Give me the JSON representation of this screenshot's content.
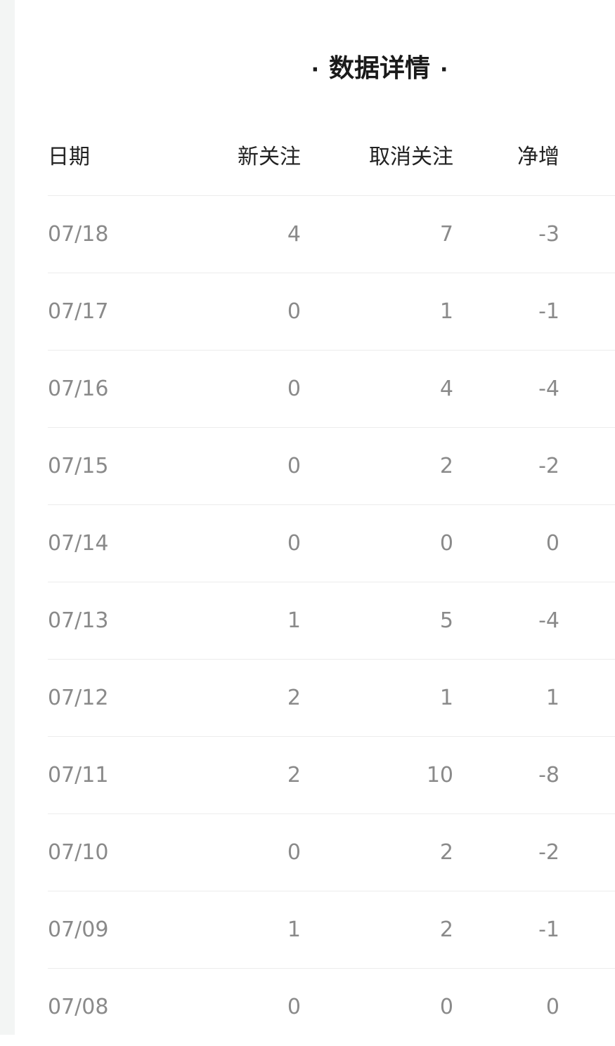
{
  "title": "数据详情",
  "title_dot": "·",
  "table": {
    "headers": [
      "日期",
      "新关注",
      "取消关注",
      "净增"
    ],
    "rows": [
      [
        "07/18",
        "4",
        "7",
        "-3"
      ],
      [
        "07/17",
        "0",
        "1",
        "-1"
      ],
      [
        "07/16",
        "0",
        "4",
        "-4"
      ],
      [
        "07/15",
        "0",
        "2",
        "-2"
      ],
      [
        "07/14",
        "0",
        "0",
        "0"
      ],
      [
        "07/13",
        "1",
        "5",
        "-4"
      ],
      [
        "07/12",
        "2",
        "1",
        "1"
      ],
      [
        "07/11",
        "2",
        "10",
        "-8"
      ],
      [
        "07/10",
        "0",
        "2",
        "-2"
      ],
      [
        "07/09",
        "1",
        "2",
        "-1"
      ],
      [
        "07/08",
        "0",
        "0",
        "0"
      ]
    ]
  }
}
